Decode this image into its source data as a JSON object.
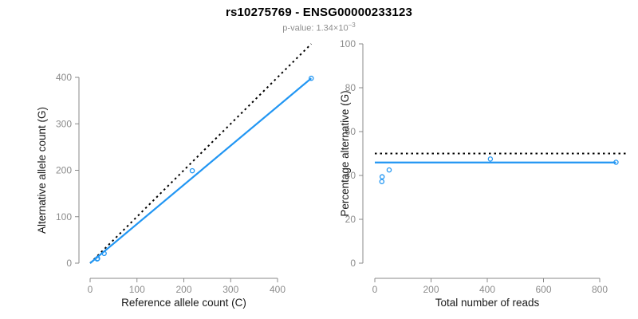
{
  "header": {
    "title": "rs10275769 - ENSG00000233123",
    "subtitle_base": "p-value: 1.34×10",
    "subtitle_exponent": "−3"
  },
  "colors": {
    "accent_blue": "#2196F3",
    "dashed_line_black": "#000000",
    "tick_label_gray": "#8c8c8c",
    "axis_line_gray": "#888888",
    "axis_title_color": "#1a1a1a",
    "subtitle_gray": "#8e8e8e"
  },
  "chart_data": [
    {
      "type": "scatter",
      "name": "allele-counts-scatter",
      "title": "",
      "xlabel": "Reference allele count (C)",
      "ylabel": "Alternative allele count (G)",
      "xticks": [
        0,
        100,
        200,
        300,
        400
      ],
      "yticks": [
        0,
        100,
        200,
        300,
        400
      ],
      "xlim": [
        0,
        480
      ],
      "ylim": [
        0,
        480
      ],
      "grid": false,
      "legend": false,
      "points": [
        [
          15,
          9
        ],
        [
          16,
          10
        ],
        [
          30,
          21
        ],
        [
          218,
          199
        ],
        [
          472,
          398
        ]
      ],
      "lines": [
        {
          "name": "identity",
          "style": "dashed",
          "color": "#000000",
          "from": [
            0,
            0
          ],
          "to": [
            472,
            472
          ]
        },
        {
          "name": "fit",
          "style": "solid",
          "color": "#2196F3",
          "from": [
            0,
            0
          ],
          "to": [
            472,
            398
          ]
        }
      ]
    },
    {
      "type": "scatter",
      "name": "percentage-vs-reads-scatter",
      "title": "",
      "xlabel": "Total number of reads",
      "ylabel": "Percentage alternative (G)",
      "xticks": [
        0,
        200,
        400,
        600,
        800
      ],
      "yticks": [
        0,
        20,
        40,
        60,
        80,
        100
      ],
      "xlim": [
        0,
        900
      ],
      "ylim": [
        0,
        100
      ],
      "grid": false,
      "legend": false,
      "points": [
        [
          25,
          37.2
        ],
        [
          26,
          39.4
        ],
        [
          51,
          42.5
        ],
        [
          411,
          47.5
        ],
        [
          858,
          46
        ]
      ],
      "lines": [
        {
          "name": "expected-50pct",
          "style": "dashed",
          "color": "#000000",
          "from": [
            0,
            50
          ],
          "to": [
            900,
            50
          ]
        },
        {
          "name": "overall-ratio",
          "style": "solid",
          "color": "#2196F3",
          "from": [
            0,
            45.9
          ],
          "to": [
            858,
            45.9
          ]
        }
      ]
    }
  ]
}
